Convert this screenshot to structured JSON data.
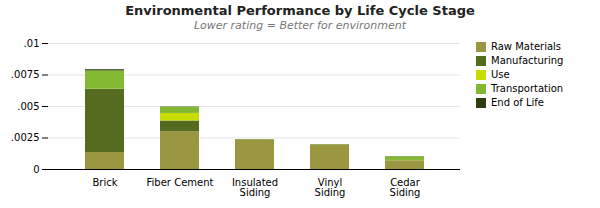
{
  "chart_data": {
    "type": "bar",
    "stacked": true,
    "title": "Environmental Performance by Life Cycle Stage",
    "subtitle": "Lower rating = Better for environment",
    "categories": [
      "Brick",
      "Fiber Cement",
      "Insulated\nSiding",
      "Vinyl\nSiding",
      "Cedar\nSiding"
    ],
    "series": [
      {
        "name": "Raw Materials",
        "color": "#9b9640",
        "values": [
          0.00135,
          0.003,
          0.0023,
          0.0019,
          0.00068
        ]
      },
      {
        "name": "Manufacturing",
        "color": "#556b20",
        "values": [
          0.005,
          0.00085,
          2e-05,
          2e-05,
          2e-05
        ]
      },
      {
        "name": "Use",
        "color": "#c8dc00",
        "values": [
          2e-05,
          0.0006,
          2e-05,
          2e-05,
          2e-05
        ]
      },
      {
        "name": "Transportation",
        "color": "#82b832",
        "values": [
          0.00145,
          0.0005,
          2e-05,
          2e-05,
          0.00028
        ]
      },
      {
        "name": "End of Life",
        "color": "#2d3d10",
        "values": [
          0.0001,
          2e-05,
          2e-05,
          2e-05,
          2e-05
        ]
      }
    ],
    "ylim": [
      0,
      0.01
    ],
    "yticks": [
      0,
      {
        "value": 0.0025,
        "label": ".0025"
      },
      {
        "value": 0.005,
        "label": ".005"
      },
      {
        "value": 0.0075,
        "label": ".0075"
      },
      {
        "value": 0.01,
        "label": ".01"
      }
    ],
    "grid": true,
    "legend": "right"
  }
}
